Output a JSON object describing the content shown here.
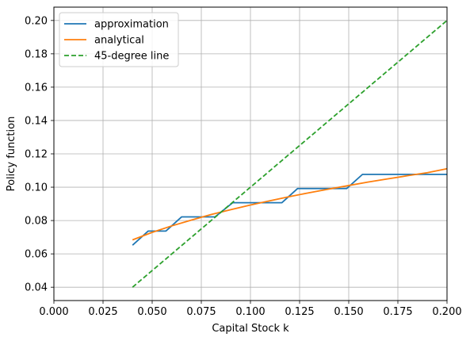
{
  "chart_data": {
    "type": "line",
    "xlabel": "Capital Stock k",
    "ylabel": "Policy function",
    "xlim": [
      0.0,
      0.2
    ],
    "ylim": [
      0.032,
      0.208
    ],
    "grid": true,
    "legend_position": "top-left",
    "x_ticks": [
      "0.000",
      "0.025",
      "0.050",
      "0.075",
      "0.100",
      "0.125",
      "0.150",
      "0.175",
      "0.200"
    ],
    "x_tick_values": [
      0.0,
      0.025,
      0.05,
      0.075,
      0.1,
      0.125,
      0.15,
      0.175,
      0.2
    ],
    "y_ticks": [
      "0.04",
      "0.06",
      "0.08",
      "0.10",
      "0.12",
      "0.14",
      "0.16",
      "0.18",
      "0.20"
    ],
    "y_tick_values": [
      0.04,
      0.06,
      0.08,
      0.1,
      0.12,
      0.14,
      0.16,
      0.18,
      0.2
    ],
    "series": [
      {
        "name": "approximation",
        "color": "#1f77b4",
        "style": "solid",
        "x": [
          0.04,
          0.048,
          0.057,
          0.065,
          0.073,
          0.082,
          0.091,
          0.099,
          0.107,
          0.116,
          0.124,
          0.132,
          0.141,
          0.149,
          0.157,
          0.166,
          0.174,
          0.183,
          0.191,
          0.2
        ],
        "y": [
          0.0652,
          0.0737,
          0.0737,
          0.0822,
          0.0822,
          0.0822,
          0.0907,
          0.0907,
          0.0907,
          0.0907,
          0.0992,
          0.0992,
          0.0992,
          0.0992,
          0.1077,
          0.1077,
          0.1077,
          0.1077,
          0.1077,
          0.1077
        ]
      },
      {
        "name": "analytical",
        "color": "#ff7f0e",
        "style": "solid",
        "x": [
          0.04,
          0.05,
          0.06,
          0.07,
          0.08,
          0.09,
          0.1,
          0.11,
          0.12,
          0.13,
          0.14,
          0.15,
          0.16,
          0.17,
          0.18,
          0.19,
          0.2
        ],
        "y": [
          0.0684,
          0.0729,
          0.0768,
          0.0803,
          0.0836,
          0.0865,
          0.0893,
          0.0919,
          0.0944,
          0.0967,
          0.0989,
          0.101,
          0.1031,
          0.105,
          0.1069,
          0.1087,
          0.1111
        ]
      },
      {
        "name": "45-degree line",
        "color": "#2ca02c",
        "style": "dashed",
        "x": [
          0.04,
          0.2
        ],
        "y": [
          0.04,
          0.2
        ]
      }
    ]
  }
}
